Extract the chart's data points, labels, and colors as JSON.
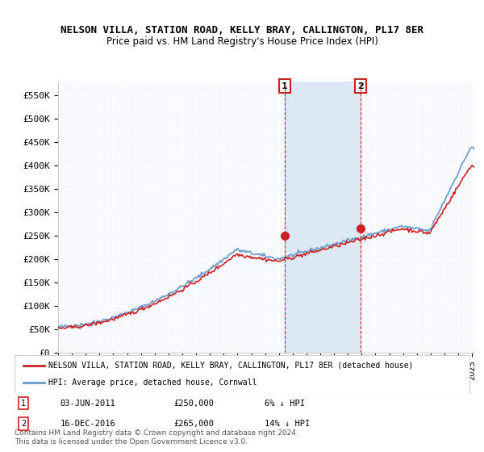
{
  "title": "NELSON VILLA, STATION ROAD, KELLY BRAY, CALLINGTON, PL17 8ER",
  "subtitle": "Price paid vs. HM Land Registry's House Price Index (HPI)",
  "xlabel": "",
  "ylabel": "",
  "ylim": [
    0,
    570000
  ],
  "yticks": [
    0,
    50000,
    100000,
    150000,
    200000,
    250000,
    300000,
    350000,
    400000,
    450000,
    500000,
    550000
  ],
  "ytick_labels": [
    "£0",
    "£50K",
    "£100K",
    "£150K",
    "£200K",
    "£250K",
    "£300K",
    "£350K",
    "£400K",
    "£450K",
    "£500K",
    "£550K"
  ],
  "hpi_color": "#6699cc",
  "price_color": "#cc2222",
  "marker1_date_idx": 196,
  "marker2_date_idx": 264,
  "sale1_date": "03-JUN-2011",
  "sale1_price": 250000,
  "sale1_pct": "6%",
  "sale2_date": "16-DEC-2016",
  "sale2_price": 265000,
  "sale2_pct": "14%",
  "legend_label1": "NELSON VILLA, STATION ROAD, KELLY BRAY, CALLINGTON, PL17 8ER (detached house)",
  "legend_label2": "HPI: Average price, detached house, Cornwall",
  "footnote": "Contains HM Land Registry data © Crown copyright and database right 2024.\nThis data is licensed under the Open Government Licence v3.0.",
  "background_color": "#ffffff",
  "plot_bg_color": "#f8f8ff",
  "shaded_region_color": "#dde8f5"
}
